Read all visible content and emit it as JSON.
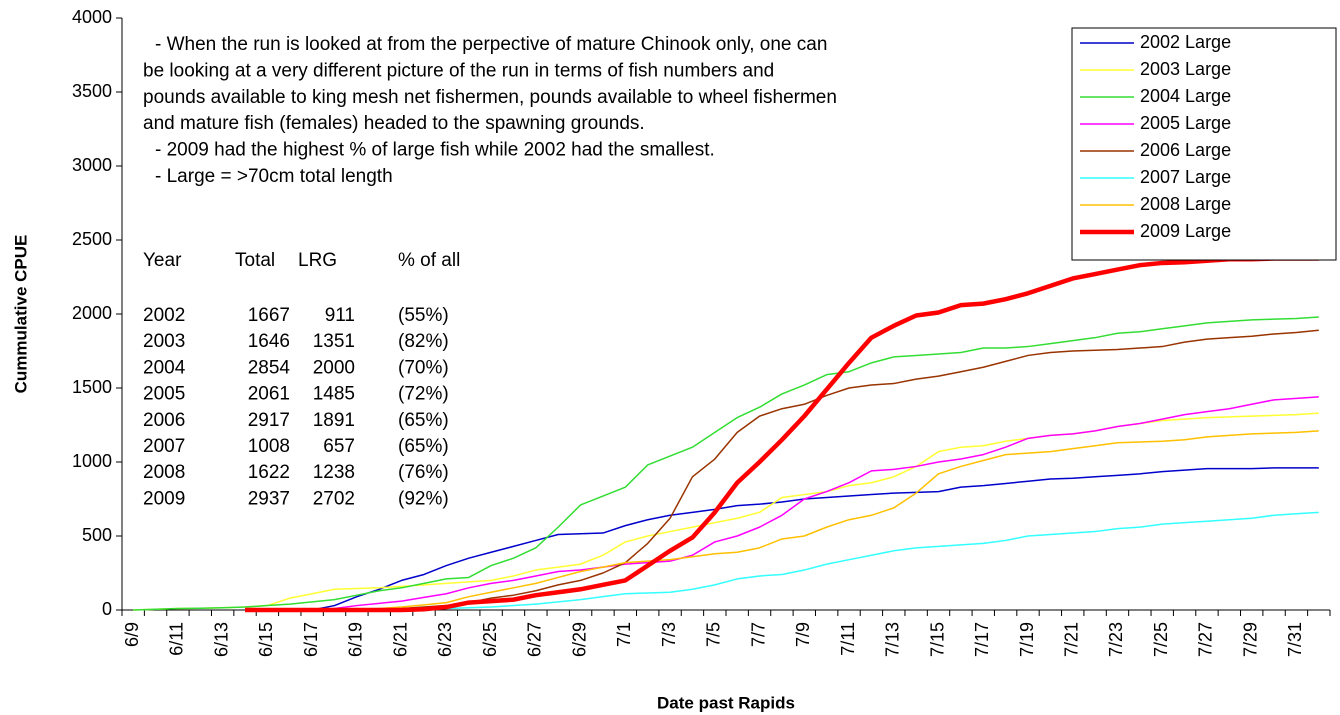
{
  "chart_data": {
    "type": "line",
    "x_label": "Date past Rapids",
    "y_label": "Cummulative CPUE",
    "categories": [
      "6/9",
      null,
      "6/11",
      null,
      "6/13",
      null,
      "6/15",
      null,
      "6/17",
      null,
      "6/19",
      null,
      "6/21",
      null,
      "6/23",
      null,
      "6/25",
      null,
      "6/27",
      null,
      "6/29",
      null,
      "7/1",
      null,
      "7/3",
      null,
      "7/5",
      null,
      "7/7",
      null,
      "7/9",
      null,
      "7/11",
      null,
      "7/13",
      null,
      "7/15",
      null,
      "7/17",
      null,
      "7/19",
      null,
      "7/21",
      null,
      "7/23",
      null,
      "7/25",
      null,
      "7/27",
      null,
      "7/29",
      null,
      "7/31",
      null
    ],
    "ylim": [
      0,
      4000
    ],
    "yticks": [
      0,
      500,
      1000,
      1500,
      2000,
      2500,
      3000,
      3500,
      4000
    ],
    "legend": "top-right",
    "series": [
      {
        "name": "2002 Large",
        "color": "#0000cc",
        "width": 1.5,
        "values": [
          null,
          null,
          null,
          null,
          null,
          null,
          0,
          0,
          0,
          30,
          90,
          140,
          200,
          240,
          300,
          350,
          390,
          430,
          470,
          510,
          515,
          520,
          570,
          610,
          640,
          660,
          680,
          705,
          715,
          730,
          750,
          760,
          770,
          780,
          790,
          795,
          800,
          830,
          840,
          855,
          870,
          885,
          890,
          900,
          910,
          920,
          935,
          945,
          955,
          955,
          955,
          960,
          960,
          960
        ]
      },
      {
        "name": "2003 Large",
        "color": "#ffff33",
        "width": 1.5,
        "values": [
          0,
          5,
          10,
          12,
          15,
          20,
          30,
          80,
          110,
          140,
          145,
          150,
          160,
          170,
          180,
          190,
          200,
          230,
          270,
          290,
          310,
          370,
          460,
          500,
          530,
          560,
          590,
          620,
          660,
          760,
          780,
          800,
          840,
          860,
          900,
          970,
          1070,
          1100,
          1110,
          1140,
          1160,
          1180,
          1190,
          1210,
          1240,
          1260,
          1280,
          1290,
          1300,
          1305,
          1310,
          1315,
          1320,
          1330
        ]
      },
      {
        "name": "2004 Large",
        "color": "#33dd33",
        "width": 1.5,
        "values": [
          0,
          5,
          10,
          12,
          15,
          20,
          30,
          40,
          55,
          70,
          100,
          130,
          150,
          180,
          210,
          220,
          300,
          350,
          420,
          560,
          710,
          770,
          830,
          980,
          1040,
          1100,
          1200,
          1300,
          1370,
          1460,
          1520,
          1590,
          1610,
          1670,
          1710,
          1720,
          1730,
          1740,
          1770,
          1770,
          1780,
          1800,
          1820,
          1840,
          1870,
          1880,
          1900,
          1920,
          1940,
          1950,
          1960,
          1965,
          1970,
          1980
        ]
      },
      {
        "name": "2005 Large",
        "color": "#ff00ff",
        "width": 1.5,
        "values": [
          null,
          null,
          null,
          null,
          null,
          null,
          null,
          null,
          0,
          10,
          30,
          45,
          60,
          85,
          110,
          150,
          180,
          200,
          230,
          260,
          270,
          290,
          310,
          320,
          330,
          370,
          460,
          500,
          560,
          640,
          750,
          800,
          860,
          940,
          950,
          970,
          1000,
          1020,
          1050,
          1100,
          1160,
          1180,
          1190,
          1210,
          1240,
          1260,
          1290,
          1320,
          1340,
          1360,
          1390,
          1420,
          1430,
          1440
        ]
      },
      {
        "name": "2006 Large",
        "color": "#993300",
        "width": 1.5,
        "values": [
          null,
          null,
          null,
          null,
          null,
          null,
          null,
          null,
          null,
          null,
          0,
          5,
          10,
          20,
          30,
          50,
          80,
          100,
          130,
          170,
          200,
          250,
          320,
          450,
          620,
          900,
          1020,
          1200,
          1310,
          1360,
          1390,
          1450,
          1500,
          1520,
          1530,
          1560,
          1580,
          1610,
          1640,
          1680,
          1720,
          1740,
          1750,
          1755,
          1760,
          1770,
          1780,
          1810,
          1830,
          1840,
          1850,
          1865,
          1875,
          1890
        ]
      },
      {
        "name": "2007 Large",
        "color": "#33ffff",
        "width": 1.5,
        "values": [
          null,
          null,
          null,
          null,
          null,
          null,
          null,
          null,
          null,
          null,
          null,
          null,
          0,
          5,
          10,
          15,
          20,
          30,
          40,
          55,
          70,
          90,
          110,
          115,
          120,
          140,
          170,
          210,
          230,
          240,
          270,
          310,
          340,
          370,
          400,
          420,
          430,
          440,
          450,
          470,
          500,
          510,
          520,
          530,
          550,
          560,
          580,
          590,
          600,
          610,
          620,
          640,
          650,
          660
        ]
      },
      {
        "name": "2008 Large",
        "color": "#ffc000",
        "width": 1.5,
        "values": [
          null,
          null,
          null,
          null,
          null,
          null,
          null,
          null,
          null,
          null,
          0,
          10,
          20,
          35,
          50,
          90,
          120,
          150,
          180,
          220,
          260,
          290,
          320,
          330,
          340,
          360,
          380,
          390,
          420,
          480,
          500,
          560,
          610,
          640,
          690,
          790,
          920,
          970,
          1010,
          1050,
          1060,
          1070,
          1090,
          1110,
          1130,
          1135,
          1140,
          1150,
          1170,
          1180,
          1190,
          1195,
          1200,
          1210
        ]
      },
      {
        "name": "2009 Large",
        "color": "#ff0000",
        "width": 4.5,
        "values": [
          null,
          null,
          null,
          null,
          null,
          0,
          0,
          0,
          0,
          0,
          0,
          0,
          0,
          5,
          20,
          50,
          60,
          70,
          100,
          120,
          140,
          170,
          200,
          300,
          400,
          490,
          660,
          860,
          1000,
          1150,
          1310,
          1490,
          1670,
          1840,
          1920,
          1990,
          2010,
          2060,
          2070,
          2100,
          2140,
          2190,
          2240,
          2270,
          2300,
          2330,
          2345,
          2350,
          2360,
          2370,
          2370,
          2375,
          2375,
          2375
        ]
      }
    ],
    "annotations": [
      "- When the run is looked at from the perpective of mature Chinook only, one can",
      "be looking at a very different picture of the run in terms of fish numbers and",
      "pounds available to king mesh net fishermen, pounds available to wheel fishermen",
      "and mature fish (females) headed to the spawning grounds.",
      "- 2009 had the highest % of large fish while 2002 had the smallest.",
      "- Large = >70cm total length"
    ],
    "table": {
      "header": [
        "Year",
        "Total",
        "LRG",
        "% of all"
      ],
      "rows": [
        [
          "2002",
          "1667",
          "911",
          "(55%)"
        ],
        [
          "2003",
          "1646",
          "1351",
          "(82%)"
        ],
        [
          "2004",
          "2854",
          "2000",
          "(70%)"
        ],
        [
          "2005",
          "2061",
          "1485",
          "(72%)"
        ],
        [
          "2006",
          "2917",
          "1891",
          "(65%)"
        ],
        [
          "2007",
          "1008",
          "657",
          "(65%)"
        ],
        [
          "2008",
          "1622",
          "1238",
          "(76%)"
        ],
        [
          "2009",
          "2937",
          "2702",
          "(92%)"
        ]
      ]
    }
  }
}
